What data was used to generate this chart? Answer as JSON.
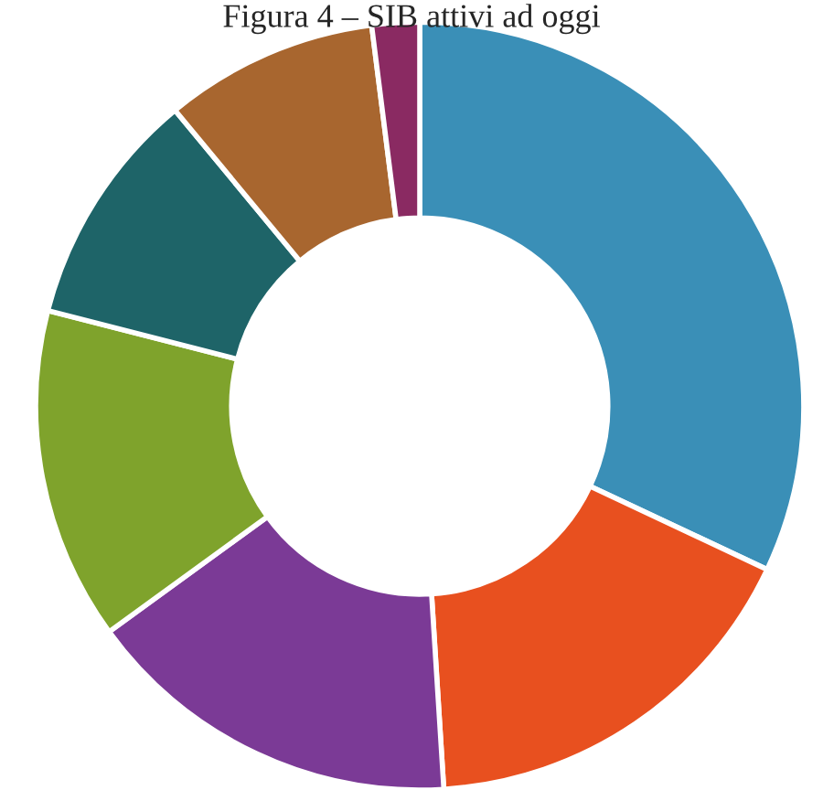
{
  "chart_data": {
    "type": "donut",
    "title": "Figura 4 – SIB attivi ad oggi",
    "categories": [
      null,
      null,
      null,
      null,
      null,
      null,
      null
    ],
    "values": [
      32,
      17,
      16,
      14,
      10,
      9,
      2
    ],
    "colors": [
      "#3a8fb7",
      "#e8501f",
      "#7b3a96",
      "#7fa32c",
      "#1e6468",
      "#a8662f",
      "#8a2a62"
    ],
    "legend": false
  }
}
